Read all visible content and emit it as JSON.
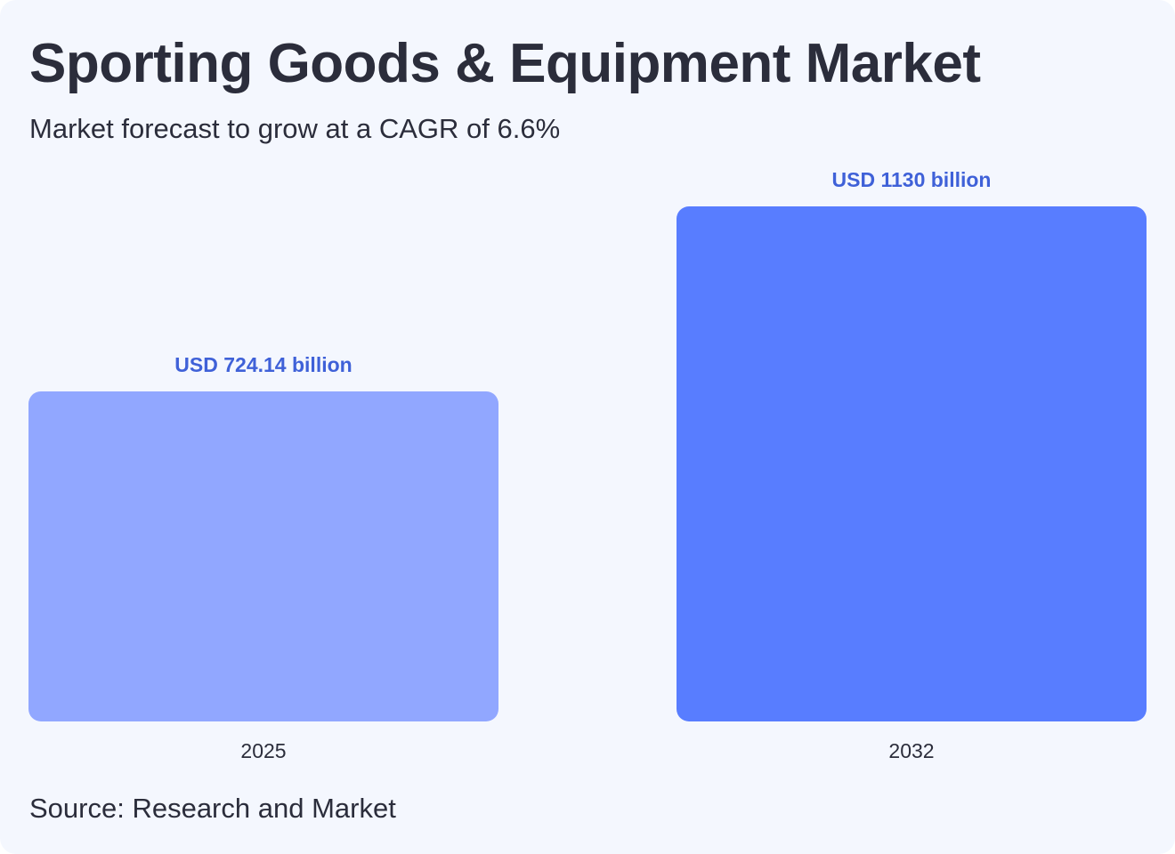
{
  "chart_data": {
    "type": "bar",
    "title": "Sporting Goods & Equipment Market",
    "subtitle": "Market forecast to grow at a CAGR of 6.6%",
    "categories": [
      "2025",
      "2032"
    ],
    "values": [
      724.14,
      1130
    ],
    "data_labels": [
      "USD 724.14 billion",
      "USD 1130 billion"
    ],
    "unit": "USD billion",
    "bar_colors": [
      "#91a7ff",
      "#587dff"
    ],
    "label_color": "#3f61d8",
    "ylim": [
      0,
      1130
    ],
    "grid": false,
    "source": "Source: Research and Market"
  }
}
